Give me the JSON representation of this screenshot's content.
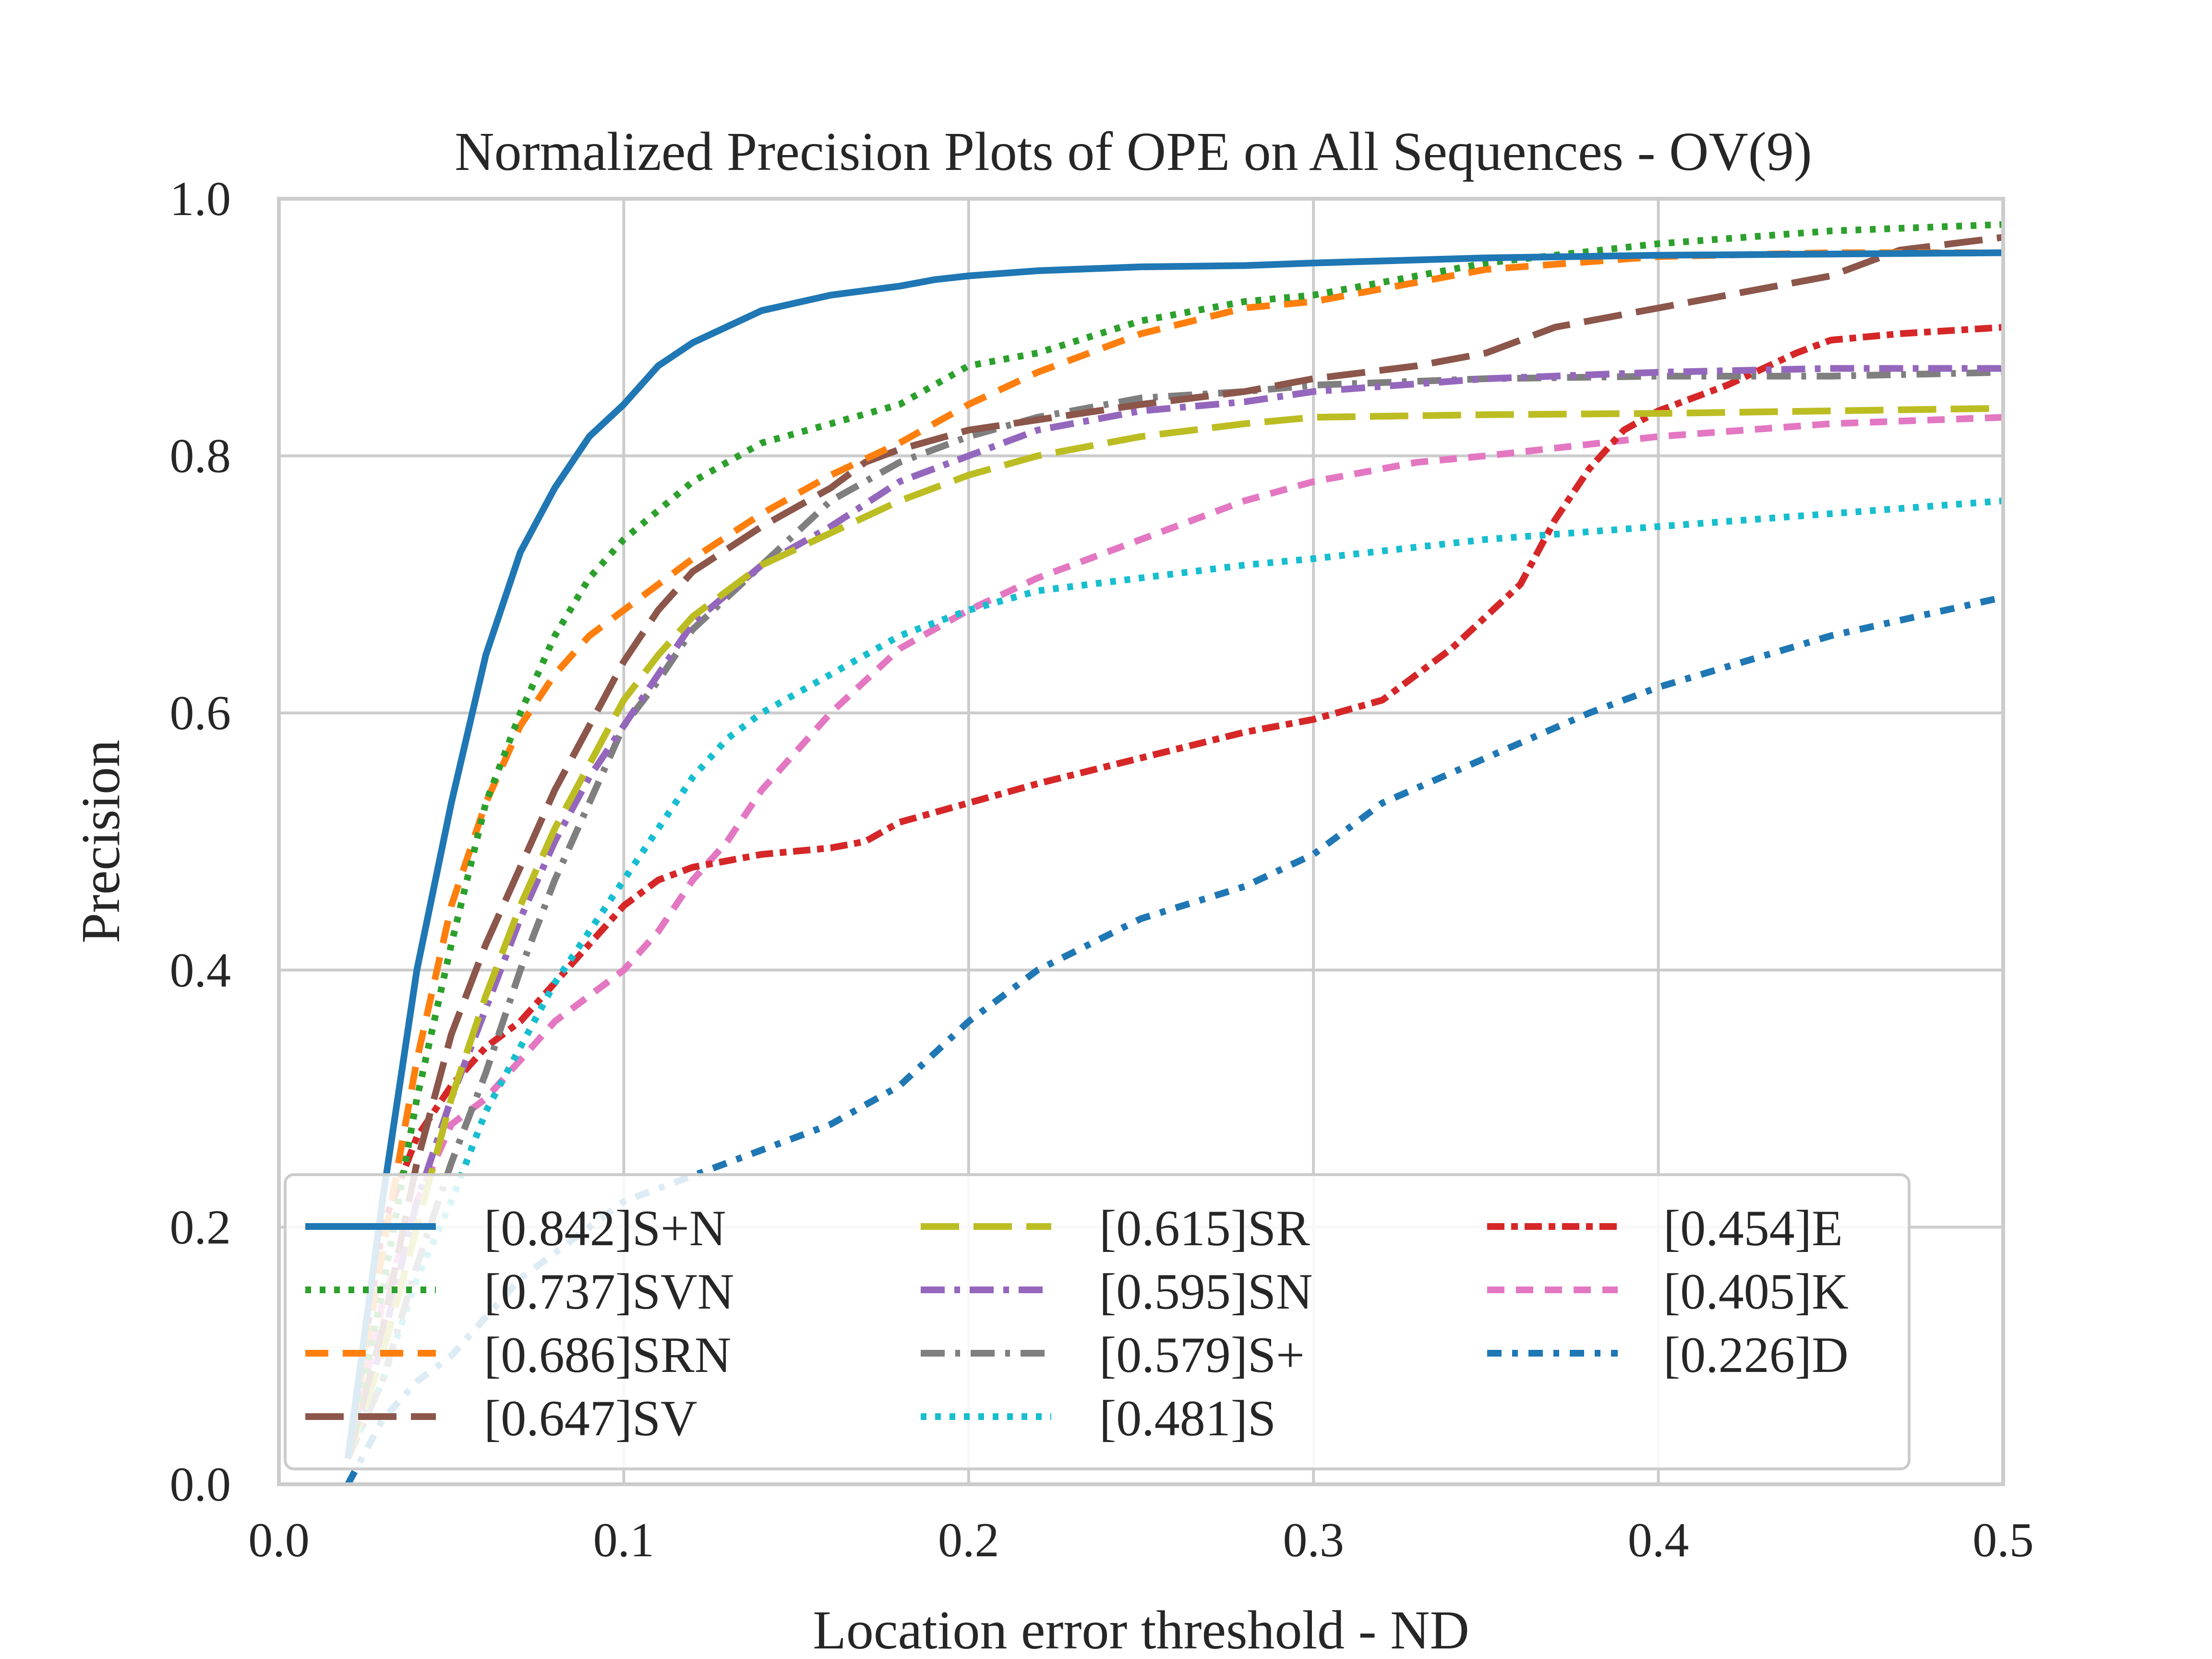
{
  "chart_data": {
    "type": "line",
    "title": "Normalized Precision Plots of OPE on All Sequences - OV(9)",
    "xlabel": "Location error threshold - ND",
    "ylabel": "Precision",
    "xlim": [
      0,
      0.5
    ],
    "ylim": [
      0,
      1
    ],
    "xticks": [
      0,
      0.1,
      0.2,
      0.3,
      0.4,
      0.5
    ],
    "xtick_labels": [
      "0.0",
      "0.1",
      "0.2",
      "0.3",
      "0.4",
      "0.5"
    ],
    "yticks": [
      0,
      0.2,
      0.4,
      0.6,
      0.8,
      1.0
    ],
    "ytick_labels": [
      "0.0",
      "0.2",
      "0.4",
      "0.6",
      "0.8",
      "1.0"
    ],
    "grid": true,
    "legend": {
      "placement": "lower-left",
      "columns": 3
    },
    "series": [
      {
        "name": "[0.842]S+N",
        "color": "#1f77b4",
        "style": "solid",
        "x": [
          0.02,
          0.03,
          0.04,
          0.05,
          0.06,
          0.07,
          0.08,
          0.09,
          0.1,
          0.11,
          0.12,
          0.14,
          0.16,
          0.18,
          0.19,
          0.2,
          0.22,
          0.25,
          0.28,
          0.3,
          0.35,
          0.4,
          0.45,
          0.5
        ],
        "y": [
          0.02,
          0.22,
          0.4,
          0.53,
          0.645,
          0.725,
          0.775,
          0.815,
          0.84,
          0.87,
          0.888,
          0.913,
          0.925,
          0.932,
          0.937,
          0.94,
          0.944,
          0.947,
          0.948,
          0.95,
          0.954,
          0.956,
          0.957,
          0.958
        ]
      },
      {
        "name": "[0.737]SVN",
        "color": "#2ca02c",
        "style": "dotted",
        "x": [
          0.02,
          0.03,
          0.04,
          0.05,
          0.06,
          0.07,
          0.08,
          0.09,
          0.1,
          0.12,
          0.14,
          0.16,
          0.18,
          0.2,
          0.22,
          0.25,
          0.28,
          0.3,
          0.35,
          0.4,
          0.45,
          0.5
        ],
        "y": [
          0.02,
          0.15,
          0.3,
          0.42,
          0.53,
          0.6,
          0.66,
          0.705,
          0.735,
          0.78,
          0.81,
          0.825,
          0.84,
          0.87,
          0.88,
          0.905,
          0.92,
          0.925,
          0.95,
          0.965,
          0.975,
          0.98
        ]
      },
      {
        "name": "[0.686]SRN",
        "color": "#ff7f0e",
        "style": "dashed",
        "x": [
          0.02,
          0.03,
          0.04,
          0.05,
          0.06,
          0.07,
          0.08,
          0.09,
          0.1,
          0.12,
          0.14,
          0.16,
          0.18,
          0.2,
          0.22,
          0.25,
          0.28,
          0.3,
          0.35,
          0.4,
          0.45,
          0.5
        ],
        "y": [
          0.02,
          0.18,
          0.33,
          0.45,
          0.53,
          0.59,
          0.63,
          0.66,
          0.68,
          0.72,
          0.755,
          0.785,
          0.81,
          0.84,
          0.865,
          0.895,
          0.915,
          0.92,
          0.945,
          0.955,
          0.958,
          0.958
        ]
      },
      {
        "name": "[0.647]SV",
        "color": "#8c564b",
        "style": "dashed",
        "x": [
          0.02,
          0.03,
          0.04,
          0.05,
          0.06,
          0.07,
          0.08,
          0.09,
          0.1,
          0.11,
          0.12,
          0.14,
          0.16,
          0.17,
          0.18,
          0.2,
          0.22,
          0.25,
          0.28,
          0.3,
          0.33,
          0.35,
          0.37,
          0.4,
          0.42,
          0.45,
          0.47,
          0.5
        ],
        "y": [
          0.02,
          0.12,
          0.25,
          0.35,
          0.42,
          0.48,
          0.54,
          0.59,
          0.64,
          0.68,
          0.71,
          0.745,
          0.775,
          0.795,
          0.805,
          0.82,
          0.828,
          0.84,
          0.85,
          0.86,
          0.87,
          0.88,
          0.9,
          0.915,
          0.925,
          0.94,
          0.96,
          0.97
        ]
      },
      {
        "name": "[0.615]SR",
        "color": "#bcbd22",
        "style": "dashed",
        "x": [
          0.02,
          0.03,
          0.04,
          0.05,
          0.06,
          0.07,
          0.08,
          0.09,
          0.1,
          0.11,
          0.12,
          0.14,
          0.16,
          0.18,
          0.2,
          0.22,
          0.25,
          0.28,
          0.3,
          0.35,
          0.4,
          0.45,
          0.5
        ],
        "y": [
          0.02,
          0.1,
          0.2,
          0.3,
          0.38,
          0.45,
          0.51,
          0.56,
          0.61,
          0.645,
          0.675,
          0.715,
          0.74,
          0.765,
          0.785,
          0.8,
          0.815,
          0.825,
          0.83,
          0.832,
          0.833,
          0.835,
          0.837
        ]
      },
      {
        "name": "[0.595]SN",
        "color": "#9467bd",
        "style": "dashdot",
        "x": [
          0.02,
          0.03,
          0.04,
          0.05,
          0.06,
          0.07,
          0.08,
          0.09,
          0.1,
          0.11,
          0.12,
          0.14,
          0.16,
          0.18,
          0.2,
          0.22,
          0.25,
          0.28,
          0.3,
          0.35,
          0.4,
          0.45,
          0.5
        ],
        "y": [
          0.02,
          0.11,
          0.22,
          0.3,
          0.37,
          0.44,
          0.5,
          0.55,
          0.59,
          0.63,
          0.67,
          0.715,
          0.745,
          0.78,
          0.8,
          0.82,
          0.835,
          0.842,
          0.85,
          0.86,
          0.865,
          0.868,
          0.868
        ]
      },
      {
        "name": "[0.579]S+",
        "color": "#7f7f7f",
        "style": "dashdot",
        "x": [
          0.02,
          0.03,
          0.04,
          0.05,
          0.06,
          0.07,
          0.08,
          0.09,
          0.1,
          0.11,
          0.12,
          0.14,
          0.16,
          0.18,
          0.2,
          0.22,
          0.25,
          0.28,
          0.3,
          0.35,
          0.4,
          0.45,
          0.5
        ],
        "y": [
          0.02,
          0.08,
          0.17,
          0.25,
          0.32,
          0.4,
          0.47,
          0.53,
          0.59,
          0.625,
          0.665,
          0.715,
          0.765,
          0.795,
          0.815,
          0.83,
          0.845,
          0.85,
          0.855,
          0.86,
          0.862,
          0.862,
          0.865
        ]
      },
      {
        "name": "[0.481]S",
        "color": "#17becf",
        "style": "dotted",
        "x": [
          0.02,
          0.03,
          0.04,
          0.05,
          0.06,
          0.07,
          0.08,
          0.09,
          0.1,
          0.11,
          0.12,
          0.13,
          0.14,
          0.16,
          0.18,
          0.2,
          0.22,
          0.25,
          0.28,
          0.3,
          0.35,
          0.4,
          0.45,
          0.5
        ],
        "y": [
          0.02,
          0.08,
          0.16,
          0.22,
          0.29,
          0.34,
          0.39,
          0.43,
          0.47,
          0.51,
          0.55,
          0.58,
          0.6,
          0.63,
          0.66,
          0.68,
          0.695,
          0.705,
          0.715,
          0.72,
          0.735,
          0.745,
          0.755,
          0.765
        ]
      },
      {
        "name": "[0.454]E",
        "color": "#d62728",
        "style": "dashdot",
        "x": [
          0.02,
          0.03,
          0.04,
          0.05,
          0.06,
          0.07,
          0.08,
          0.09,
          0.1,
          0.11,
          0.12,
          0.14,
          0.16,
          0.17,
          0.18,
          0.2,
          0.22,
          0.25,
          0.28,
          0.3,
          0.32,
          0.34,
          0.36,
          0.37,
          0.38,
          0.39,
          0.4,
          0.42,
          0.44,
          0.45,
          0.47,
          0.5
        ],
        "y": [
          0.02,
          0.2,
          0.27,
          0.31,
          0.34,
          0.36,
          0.39,
          0.42,
          0.45,
          0.47,
          0.48,
          0.49,
          0.495,
          0.5,
          0.515,
          0.53,
          0.545,
          0.565,
          0.585,
          0.595,
          0.61,
          0.65,
          0.7,
          0.75,
          0.79,
          0.82,
          0.835,
          0.855,
          0.88,
          0.89,
          0.895,
          0.9
        ]
      },
      {
        "name": "[0.405]K",
        "color": "#e377c2",
        "style": "dashed",
        "x": [
          0.02,
          0.03,
          0.04,
          0.05,
          0.06,
          0.07,
          0.08,
          0.09,
          0.1,
          0.11,
          0.12,
          0.13,
          0.14,
          0.16,
          0.18,
          0.2,
          0.22,
          0.25,
          0.28,
          0.3,
          0.33,
          0.35,
          0.4,
          0.45,
          0.5
        ],
        "y": [
          0.02,
          0.14,
          0.22,
          0.28,
          0.3,
          0.33,
          0.36,
          0.38,
          0.4,
          0.43,
          0.47,
          0.5,
          0.54,
          0.6,
          0.65,
          0.68,
          0.705,
          0.735,
          0.765,
          0.78,
          0.795,
          0.8,
          0.815,
          0.825,
          0.83
        ]
      },
      {
        "name": "[0.226]D",
        "color": "#1f77b4",
        "style": "dashdot",
        "x": [
          0.02,
          0.03,
          0.04,
          0.05,
          0.06,
          0.07,
          0.08,
          0.09,
          0.1,
          0.12,
          0.14,
          0.16,
          0.18,
          0.2,
          0.22,
          0.25,
          0.28,
          0.3,
          0.32,
          0.35,
          0.38,
          0.4,
          0.45,
          0.5
        ],
        "y": [
          0.0,
          0.05,
          0.08,
          0.1,
          0.13,
          0.16,
          0.18,
          0.2,
          0.22,
          0.24,
          0.26,
          0.28,
          0.31,
          0.36,
          0.4,
          0.44,
          0.465,
          0.49,
          0.53,
          0.565,
          0.6,
          0.62,
          0.66,
          0.69
        ]
      }
    ]
  }
}
